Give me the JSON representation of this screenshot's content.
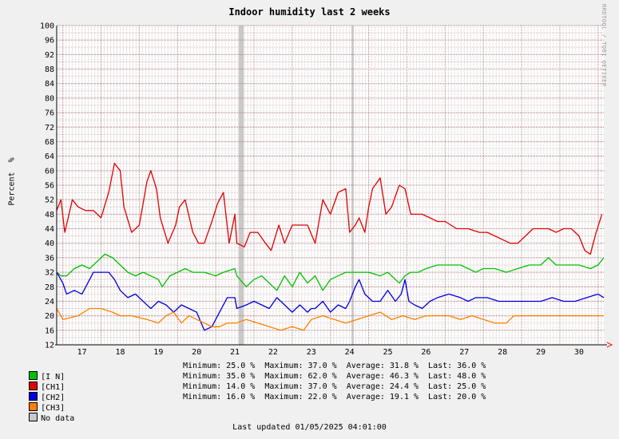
{
  "chart_data": {
    "type": "line",
    "title": "Indoor humidity last 2 weeks",
    "ylabel": "Percent  %",
    "credit": "RRDTOOL / TOBI OETIKER",
    "ylim": [
      12,
      100
    ],
    "y_ticks": [
      12,
      16,
      20,
      24,
      28,
      32,
      36,
      40,
      44,
      48,
      52,
      56,
      60,
      64,
      68,
      72,
      76,
      80,
      84,
      88,
      92,
      96,
      100
    ],
    "x_range_days": [
      16.34,
      30.65
    ],
    "x_ticks": [
      "17",
      "18",
      "19",
      "20",
      "21",
      "22",
      "23",
      "24",
      "25",
      "26",
      "27",
      "28",
      "29",
      "30"
    ],
    "no_data_bands": [
      [
        21.1,
        21.23
      ],
      [
        24.05,
        24.11
      ]
    ],
    "colors": {
      "background": "#ffffff",
      "canvas_bg": "#f0f0f0",
      "grid_major": "#b08080",
      "grid_minor": "#d8c8c8",
      "nodata": "#c8c8c8",
      "arrow": "#ff0000"
    },
    "series": [
      {
        "name": "[I N]",
        "color": "#00c000",
        "x": [
          16.34,
          16.45,
          16.6,
          16.8,
          17.0,
          17.2,
          17.4,
          17.6,
          17.8,
          18.0,
          18.2,
          18.4,
          18.6,
          18.8,
          19.0,
          19.1,
          19.3,
          19.5,
          19.7,
          19.9,
          20.2,
          20.5,
          20.7,
          21.0,
          21.05,
          21.3,
          21.5,
          21.7,
          21.9,
          22.1,
          22.3,
          22.5,
          22.7,
          22.9,
          23.1,
          23.3,
          23.5,
          23.7,
          23.9,
          24.2,
          24.5,
          24.8,
          25.0,
          25.3,
          25.45,
          25.6,
          25.8,
          26.0,
          26.3,
          26.6,
          26.9,
          27.1,
          27.3,
          27.5,
          27.8,
          28.1,
          28.4,
          28.7,
          29.0,
          29.2,
          29.4,
          29.7,
          30.0,
          30.3,
          30.5,
          30.65
        ],
        "y": [
          32,
          31,
          31,
          33,
          34,
          33,
          35,
          37,
          36,
          34,
          32,
          31,
          32,
          31,
          30,
          28,
          31,
          32,
          33,
          32,
          32,
          31,
          32,
          33,
          31,
          28,
          30,
          31,
          29,
          27,
          31,
          28,
          32,
          29,
          31,
          27,
          30,
          31,
          32,
          32,
          32,
          31,
          32,
          29,
          31,
          32,
          32,
          33,
          34,
          34,
          34,
          33,
          32,
          33,
          33,
          32,
          33,
          34,
          34,
          36,
          34,
          34,
          34,
          33,
          34,
          36
        ]
      },
      {
        "name": "[CH1]",
        "color": "#e00000",
        "x": [
          16.34,
          16.45,
          16.55,
          16.75,
          16.9,
          17.1,
          17.3,
          17.5,
          17.7,
          17.85,
          18.0,
          18.1,
          18.3,
          18.5,
          18.7,
          18.8,
          18.95,
          19.05,
          19.25,
          19.45,
          19.55,
          19.7,
          19.9,
          20.05,
          20.2,
          20.4,
          20.55,
          20.7,
          20.85,
          21.0,
          21.05,
          21.25,
          21.4,
          21.6,
          21.8,
          21.95,
          22.15,
          22.3,
          22.5,
          22.7,
          22.9,
          23.1,
          23.3,
          23.5,
          23.7,
          23.9,
          24.0,
          24.15,
          24.25,
          24.4,
          24.5,
          24.6,
          24.8,
          24.95,
          25.1,
          25.3,
          25.45,
          25.6,
          25.75,
          25.9,
          26.1,
          26.3,
          26.5,
          26.8,
          27.1,
          27.4,
          27.6,
          27.8,
          28.0,
          28.2,
          28.4,
          28.6,
          28.8,
          29.0,
          29.2,
          29.4,
          29.6,
          29.8,
          30.0,
          30.15,
          30.3,
          30.45,
          30.6
        ],
        "y": [
          49,
          52,
          43,
          52,
          50,
          49,
          49,
          47,
          54,
          62,
          60,
          50,
          43,
          45,
          57,
          60,
          55,
          47,
          40,
          45,
          50,
          52,
          43,
          40,
          40,
          46,
          51,
          54,
          40,
          48,
          40,
          39,
          43,
          43,
          40,
          38,
          45,
          40,
          45,
          45,
          45,
          40,
          52,
          48,
          54,
          55,
          43,
          45,
          47,
          43,
          50,
          55,
          58,
          48,
          50,
          56,
          55,
          48,
          48,
          48,
          47,
          46,
          46,
          44,
          44,
          43,
          43,
          42,
          41,
          40,
          40,
          42,
          44,
          44,
          44,
          43,
          44,
          44,
          42,
          38,
          37,
          43,
          48
        ]
      },
      {
        "name": "[CH2]",
        "color": "#0000e0",
        "x": [
          16.34,
          16.5,
          16.6,
          16.8,
          17.0,
          17.1,
          17.3,
          17.5,
          17.7,
          17.85,
          18.0,
          18.2,
          18.4,
          18.6,
          18.8,
          19.0,
          19.2,
          19.4,
          19.6,
          19.8,
          20.0,
          20.2,
          20.4,
          20.6,
          20.8,
          21.0,
          21.05,
          21.3,
          21.5,
          21.7,
          21.9,
          22.1,
          22.3,
          22.5,
          22.7,
          22.9,
          23.0,
          23.1,
          23.3,
          23.5,
          23.7,
          23.9,
          24.0,
          24.15,
          24.25,
          24.4,
          24.6,
          24.8,
          25.0,
          25.2,
          25.35,
          25.45,
          25.55,
          25.7,
          25.9,
          26.1,
          26.3,
          26.6,
          26.9,
          27.1,
          27.3,
          27.6,
          27.9,
          28.2,
          28.5,
          28.8,
          29.0,
          29.3,
          29.6,
          29.9,
          30.2,
          30.5,
          30.65
        ],
        "y": [
          32,
          29,
          26,
          27,
          26,
          28,
          32,
          32,
          32,
          30,
          27,
          25,
          26,
          24,
          22,
          24,
          23,
          21,
          23,
          22,
          21,
          16,
          17,
          21,
          25,
          25,
          22,
          23,
          24,
          23,
          22,
          25,
          23,
          21,
          23,
          21,
          22,
          22,
          24,
          21,
          23,
          22,
          24,
          28,
          30,
          26,
          24,
          24,
          27,
          24,
          26,
          30,
          24,
          23,
          22,
          24,
          25,
          26,
          25,
          24,
          25,
          25,
          24,
          24,
          24,
          24,
          24,
          25,
          24,
          24,
          25,
          26,
          25
        ]
      },
      {
        "name": "[CH3]",
        "color": "#ff8000",
        "x": [
          16.34,
          16.5,
          16.9,
          17.2,
          17.5,
          17.8,
          18.0,
          18.3,
          18.7,
          19.0,
          19.2,
          19.4,
          19.6,
          19.8,
          20.0,
          20.2,
          20.4,
          20.6,
          20.8,
          21.0,
          21.05,
          21.3,
          21.6,
          21.9,
          22.2,
          22.5,
          22.8,
          23.0,
          23.3,
          23.6,
          23.9,
          24.2,
          24.5,
          24.8,
          25.1,
          25.4,
          25.7,
          26.0,
          26.3,
          26.6,
          26.9,
          27.2,
          27.5,
          27.8,
          28.1,
          28.3,
          28.6,
          29.0,
          29.4,
          29.8,
          30.2,
          30.65
        ],
        "y": [
          22,
          19,
          20,
          22,
          22,
          21,
          20,
          20,
          19,
          18,
          20,
          21,
          18,
          20,
          19,
          18,
          17,
          17,
          18,
          18,
          18,
          19,
          18,
          17,
          16,
          17,
          16,
          19,
          20,
          19,
          18,
          19,
          20,
          21,
          19,
          20,
          19,
          20,
          20,
          20,
          19,
          20,
          19,
          18,
          18,
          20,
          20,
          20,
          20,
          20,
          20,
          20
        ]
      }
    ],
    "legend": [
      {
        "label": "[I N]",
        "color": "#00c000"
      },
      {
        "label": "[CH1]",
        "color": "#e00000"
      },
      {
        "label": "[CH2]",
        "color": "#0000e0"
      },
      {
        "label": "[CH3]",
        "color": "#ff8000"
      },
      {
        "label": "No data",
        "color": "#c8c8c8"
      }
    ],
    "stats": [
      "Minimum: 25.0 %  Maximum: 37.0 %  Average: 31.8 %  Last: 36.0 %",
      "Minimum: 35.0 %  Maximum: 62.0 %  Average: 46.3 %  Last: 48.0 %",
      "Minimum: 14.0 %  Maximum: 37.0 %  Average: 24.4 %  Last: 25.0 %",
      "Minimum: 16.0 %  Maximum: 22.0 %  Average: 19.1 %  Last: 20.0 %"
    ],
    "last_updated": "Last updated 01/05/2025 04:01:00"
  }
}
